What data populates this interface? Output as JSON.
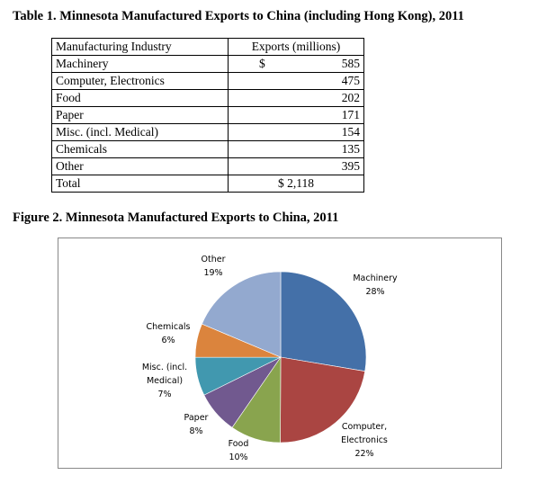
{
  "table": {
    "caption": "Table 1. Minnesota Manufactured Exports to China (including Hong Kong), 2011",
    "header_industry": "Manufacturing Industry",
    "header_exports": "Exports (millions)",
    "first_currency": "$",
    "rows": [
      {
        "industry": "Machinery",
        "value": "585"
      },
      {
        "industry": "Computer, Electronics",
        "value": "475"
      },
      {
        "industry": "Food",
        "value": "202"
      },
      {
        "industry": "Paper",
        "value": "171"
      },
      {
        "industry": "Misc. (incl. Medical)",
        "value": "154"
      },
      {
        "industry": "Chemicals",
        "value": "135"
      },
      {
        "industry": "Other",
        "value": "395"
      }
    ],
    "total_label": "Total",
    "total_value": "$ 2,118"
  },
  "figure": {
    "caption": "Figure 2. Minnesota Manufactured Exports to China, 2011"
  },
  "chart_data": {
    "type": "pie",
    "title": "",
    "start": "12 o'clock, clockwise",
    "slices": [
      {
        "label_lines": [
          "Machinery",
          "28%"
        ],
        "value": 585,
        "percent": "28%",
        "color": "#4470A8"
      },
      {
        "label_lines": [
          "Computer,",
          "Electronics",
          "22%"
        ],
        "value": 475,
        "percent": "22%",
        "color": "#AA4542"
      },
      {
        "label_lines": [
          "Food",
          "10%"
        ],
        "value": 202,
        "percent": "10%",
        "color": "#89A44E"
      },
      {
        "label_lines": [
          "Paper",
          "8%"
        ],
        "value": 171,
        "percent": "8%",
        "color": "#71598F"
      },
      {
        "label_lines": [
          "Misc. (incl.",
          "Medical)",
          "7%"
        ],
        "value": 154,
        "percent": "7%",
        "color": "#4198AF"
      },
      {
        "label_lines": [
          "Chemicals",
          "6%"
        ],
        "value": 135,
        "percent": "6%",
        "color": "#DB843D"
      },
      {
        "label_lines": [
          "Other",
          "19%"
        ],
        "value": 395,
        "percent": "19%",
        "color": "#93A9CF"
      }
    ]
  }
}
